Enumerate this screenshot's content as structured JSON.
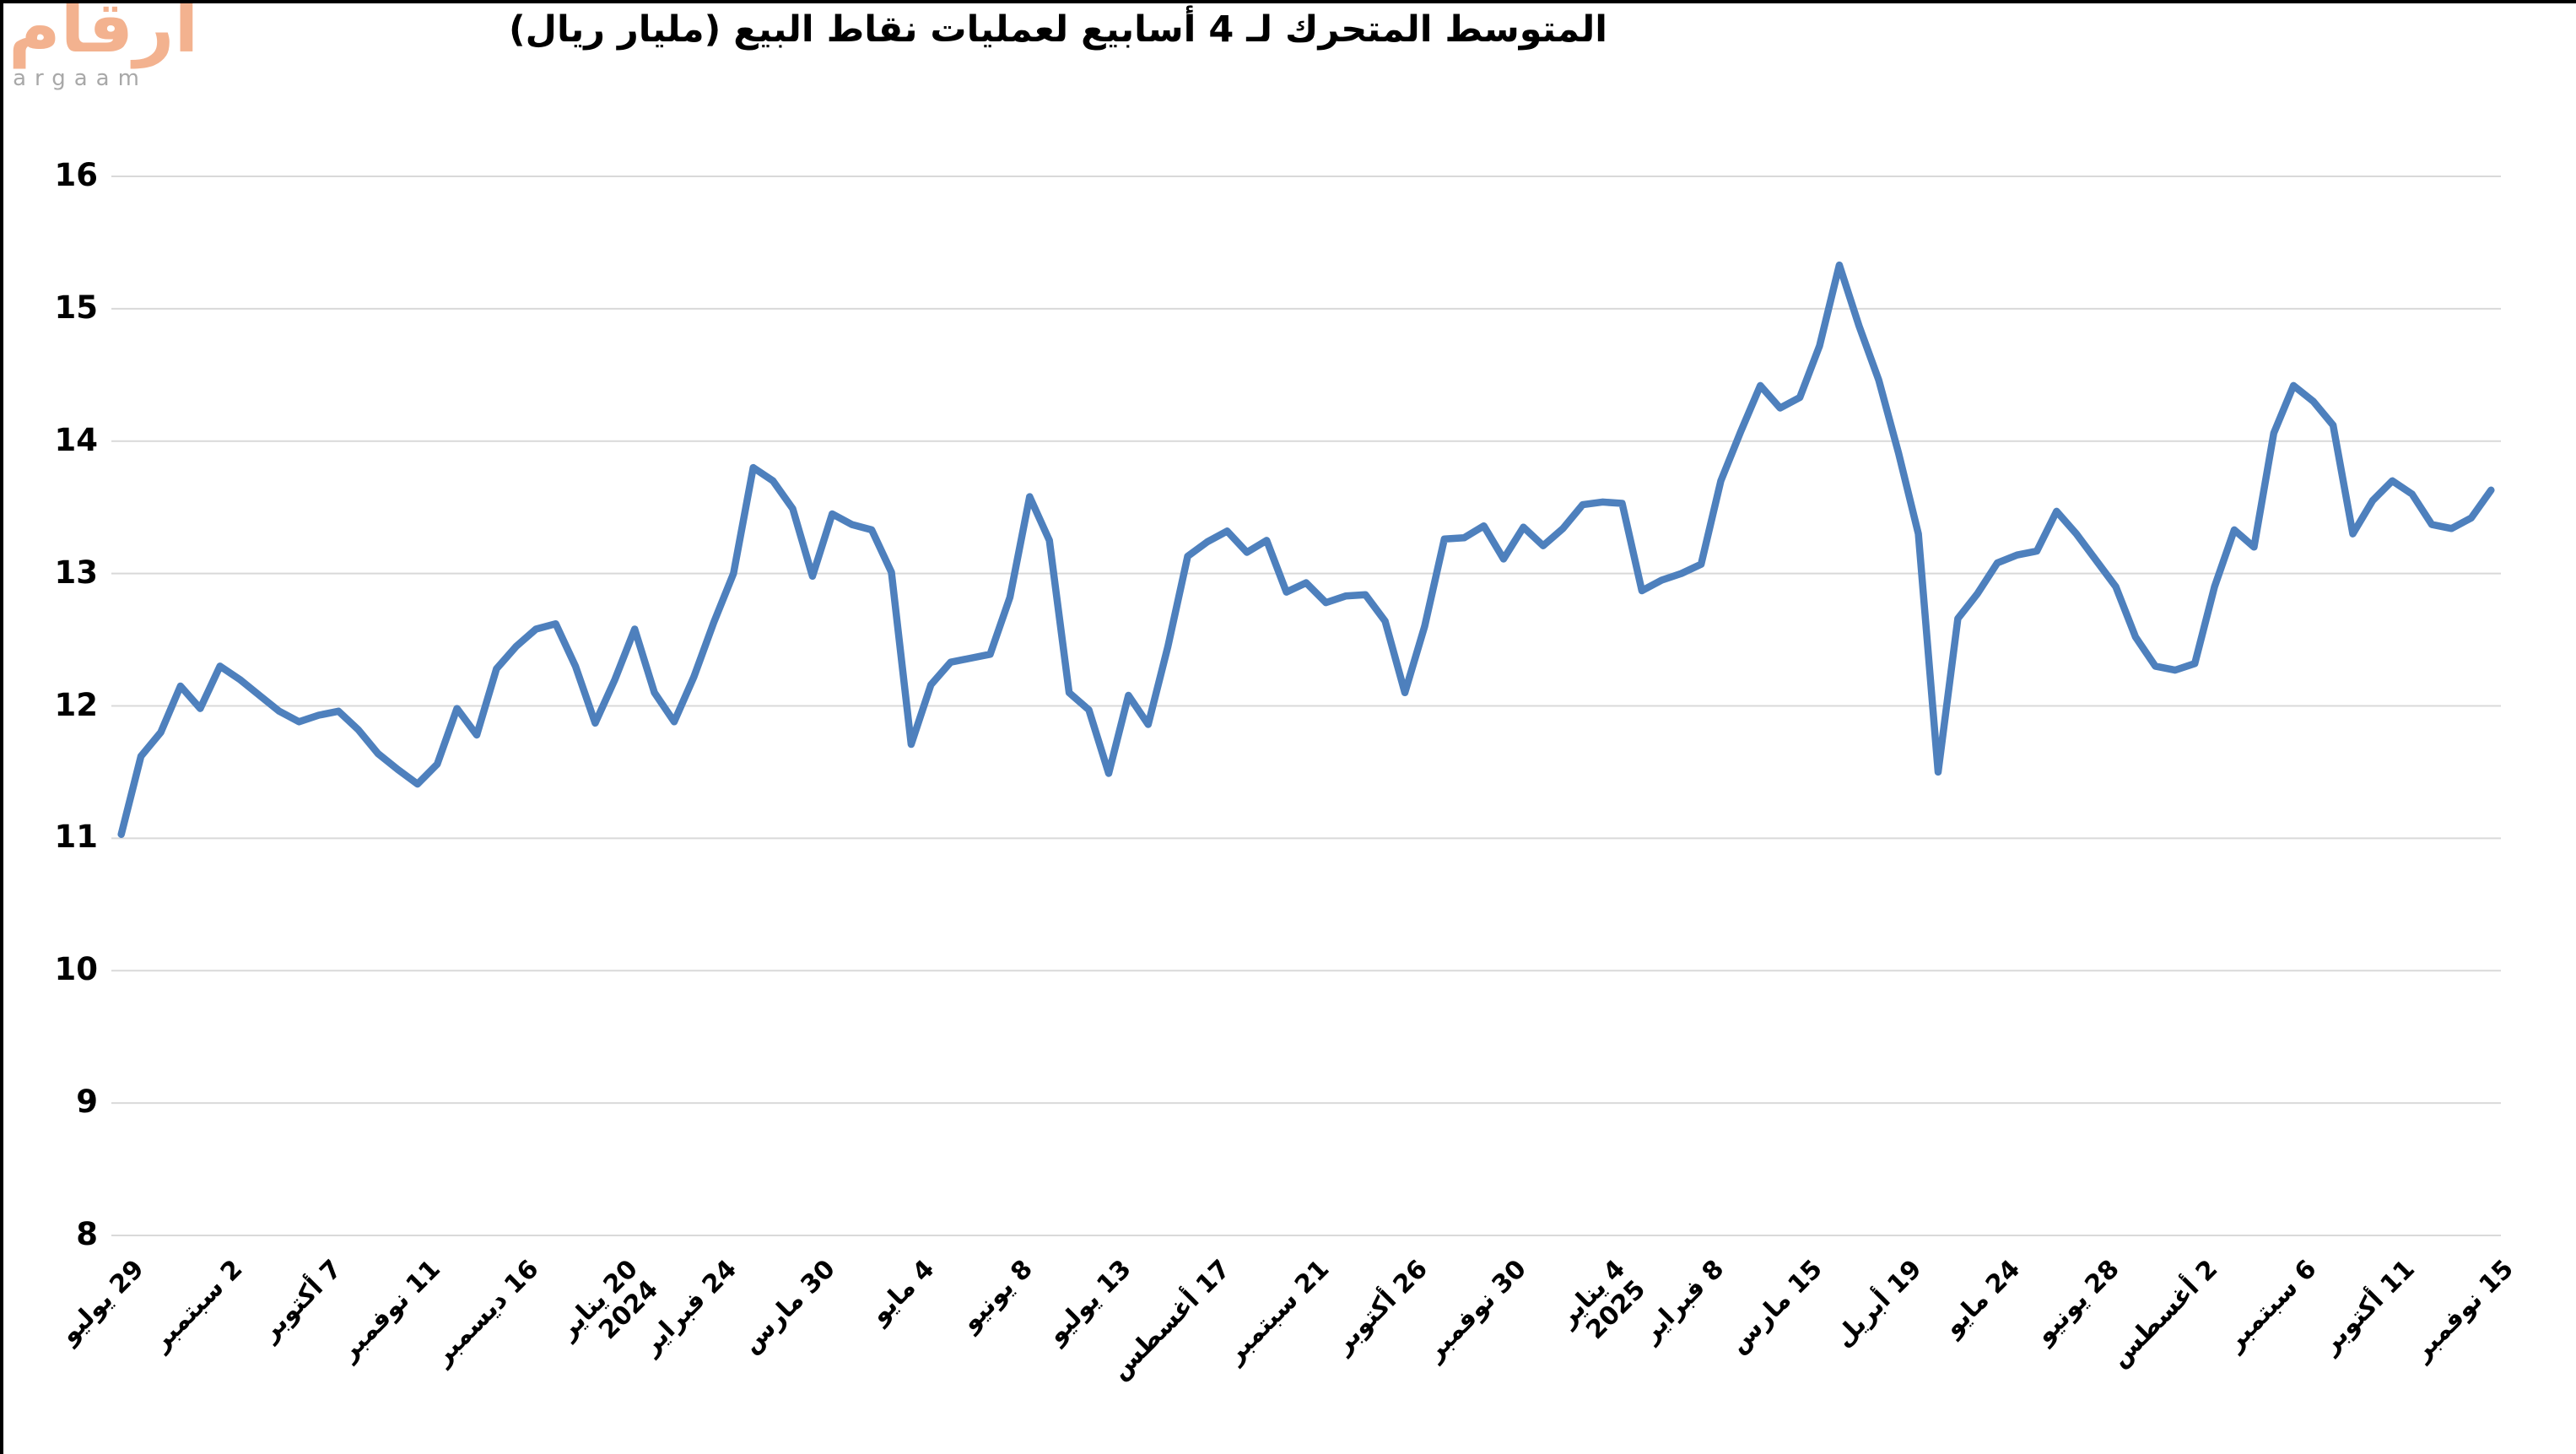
{
  "logo": {
    "arabic": "أرقام",
    "latin": "argaam"
  },
  "chart_data": {
    "type": "line",
    "title": "المتوسط المتحرك لـ 4 أسابيع لعمليات نقاط البيع (مليار ريال)",
    "unit": "مليار ريال",
    "ylim": [
      8,
      16
    ],
    "grid": "on",
    "legend": "none",
    "yticks": [
      16,
      15,
      14,
      13,
      12,
      11,
      10,
      9,
      8
    ],
    "xticks": [
      {
        "week": 0,
        "label": "29 يوليو"
      },
      {
        "week": 5,
        "label": "2 سبتمبر"
      },
      {
        "week": 10,
        "label": "7 أكتوبر"
      },
      {
        "week": 15,
        "label": "11 نوفمبر"
      },
      {
        "week": 20,
        "label": "16 ديسمبر"
      },
      {
        "week": 25,
        "label": "20 يناير\n2024"
      },
      {
        "week": 30,
        "label": "24 فبراير"
      },
      {
        "week": 35,
        "label": "30 مارس"
      },
      {
        "week": 40,
        "label": "4 مايو"
      },
      {
        "week": 45,
        "label": "8 يونيو"
      },
      {
        "week": 50,
        "label": "13 يوليو"
      },
      {
        "week": 55,
        "label": "17 أغسطس"
      },
      {
        "week": 60,
        "label": "21 سبتمبر"
      },
      {
        "week": 65,
        "label": "26 أكتوبر"
      },
      {
        "week": 70,
        "label": "30 نوفمبر"
      },
      {
        "week": 75,
        "label": "4 يناير\n2025"
      },
      {
        "week": 80,
        "label": "8 فبراير"
      },
      {
        "week": 85,
        "label": "15 مارس"
      },
      {
        "week": 90,
        "label": "19 أبريل"
      },
      {
        "week": 95,
        "label": "24 مايو"
      },
      {
        "week": 100,
        "label": "28 يونيو"
      },
      {
        "week": 105,
        "label": "2 أغسطس"
      },
      {
        "week": 110,
        "label": "6 سبتمبر"
      },
      {
        "week": 115,
        "label": "11 أكتوبر"
      },
      {
        "week": 120,
        "label": "15 نوفمبر"
      }
    ],
    "values": [
      11.03,
      11.62,
      11.8,
      12.15,
      11.98,
      12.3,
      12.2,
      12.08,
      11.96,
      11.88,
      11.93,
      11.96,
      11.82,
      11.64,
      11.52,
      11.41,
      11.56,
      11.98,
      11.78,
      12.28,
      12.45,
      12.58,
      12.62,
      12.3,
      11.87,
      12.2,
      12.58,
      12.1,
      11.88,
      12.22,
      12.63,
      13.0,
      13.8,
      13.7,
      13.49,
      12.98,
      13.45,
      13.37,
      13.33,
      13.01,
      11.71,
      12.16,
      12.33,
      12.36,
      12.39,
      12.82,
      13.58,
      13.25,
      12.1,
      11.97,
      11.49,
      12.08,
      11.86,
      12.45,
      13.13,
      13.24,
      13.32,
      13.16,
      13.25,
      12.86,
      12.93,
      12.78,
      12.83,
      12.84,
      12.64,
      12.1,
      12.6,
      13.26,
      13.27,
      13.36,
      13.11,
      13.35,
      13.21,
      13.34,
      13.52,
      13.54,
      13.53,
      12.87,
      12.95,
      13.0,
      13.07,
      13.7,
      14.07,
      14.42,
      14.25,
      14.33,
      14.72,
      15.33,
      14.87,
      14.46,
      13.91,
      13.3,
      11.5,
      12.66,
      12.85,
      13.08,
      13.14,
      13.17,
      13.47,
      13.3,
      13.1,
      12.9,
      12.52,
      12.3,
      12.27,
      12.32,
      12.9,
      13.33,
      13.2,
      14.06,
      14.42,
      14.3,
      14.12,
      13.3,
      13.55,
      13.7,
      13.6,
      13.37,
      13.34,
      13.42,
      13.63
    ],
    "colors": {
      "line": "#4e80bd",
      "grid": "#d9d9d9",
      "text": "#000000",
      "logo": "#f3b28f",
      "logo_text": "#a8a8a8"
    }
  }
}
